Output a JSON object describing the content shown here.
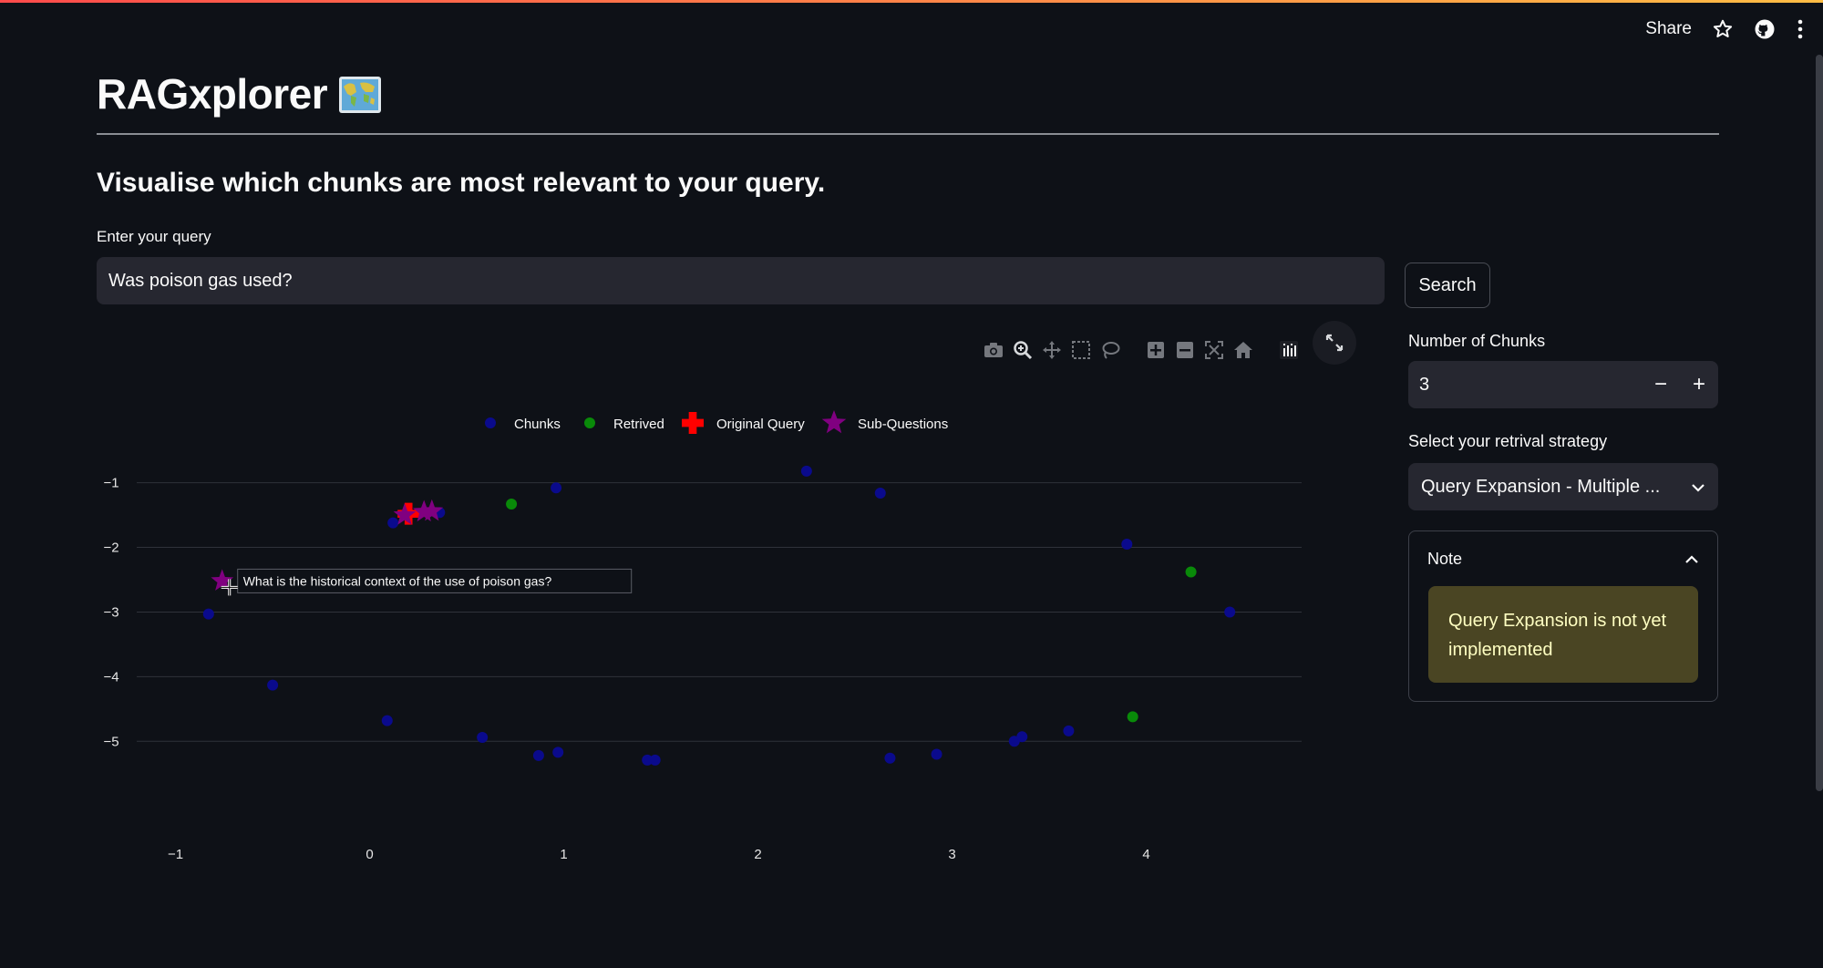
{
  "header": {
    "share_label": "Share",
    "icons": [
      "star-icon",
      "github-icon",
      "kebab-menu-icon"
    ]
  },
  "page": {
    "title": "RAGxplorer",
    "title_icon": "world-map-icon",
    "subtitle": "Visualise which chunks are most relevant to your query."
  },
  "query": {
    "label": "Enter your query",
    "value": "Was poison gas used?"
  },
  "search": {
    "label": "Search"
  },
  "modebar": {
    "icons": [
      "camera-icon",
      "zoom-icon",
      "pan-icon",
      "box-select-icon",
      "lasso-select-icon",
      "zoom-in-icon",
      "zoom-out-icon",
      "autoscale-icon",
      "reset-axes-icon",
      "plotly-logo-icon"
    ],
    "fullscreen_icon": "fullscreen-icon"
  },
  "sidebar": {
    "chunks_label": "Number of Chunks",
    "chunks_value": "3",
    "minus": "−",
    "plus": "+",
    "strategy_label": "Select your retrival strategy",
    "strategy_value": "Query Expansion - Multiple ...",
    "note_title": "Note",
    "note_message": "Query Expansion is not yet implemented"
  },
  "chart_data": {
    "type": "scatter",
    "xlim": [
      -1.2,
      4.8
    ],
    "ylim": [
      -5.8,
      -0.3
    ],
    "x_ticks": [
      -1,
      0,
      1,
      2,
      3,
      4
    ],
    "y_ticks": [
      -1,
      -2,
      -3,
      -4,
      -5
    ],
    "grid": "horizontal",
    "legend": "top",
    "series": [
      {
        "name": "Chunks",
        "marker": "circle",
        "color": "#0a0a8c",
        "points": [
          [
            -0.83,
            -3.03
          ],
          [
            -0.5,
            -4.13
          ],
          [
            0.09,
            -4.68
          ],
          [
            0.12,
            -1.62
          ],
          [
            0.36,
            -1.46
          ],
          [
            0.58,
            -4.94
          ],
          [
            0.87,
            -5.22
          ],
          [
            0.96,
            -1.08
          ],
          [
            0.97,
            -5.17
          ],
          [
            1.43,
            -5.29
          ],
          [
            1.47,
            -5.29
          ],
          [
            2.25,
            -0.82
          ],
          [
            2.63,
            -1.16
          ],
          [
            2.68,
            -5.26
          ],
          [
            2.92,
            -5.2
          ],
          [
            3.32,
            -5.0
          ],
          [
            3.36,
            -4.93
          ],
          [
            3.6,
            -4.84
          ],
          [
            3.9,
            -1.95
          ],
          [
            4.43,
            -3.0
          ]
        ]
      },
      {
        "name": "Retrived",
        "marker": "circle",
        "color": "#098a09",
        "points": [
          [
            0.73,
            -1.33
          ],
          [
            3.93,
            -4.62
          ],
          [
            4.23,
            -2.38
          ]
        ]
      },
      {
        "name": "Original Query",
        "marker": "cross",
        "color": "#ff0000",
        "points": [
          [
            0.2,
            -1.48
          ]
        ]
      },
      {
        "name": "Sub-Questions",
        "marker": "star",
        "color": "#800080",
        "points": [
          [
            0.18,
            -1.5
          ],
          [
            0.28,
            -1.45
          ],
          [
            0.32,
            -1.44
          ],
          [
            -0.76,
            -2.52
          ]
        ]
      }
    ],
    "hover_label": "What is the historical context of the use of poison gas?"
  }
}
